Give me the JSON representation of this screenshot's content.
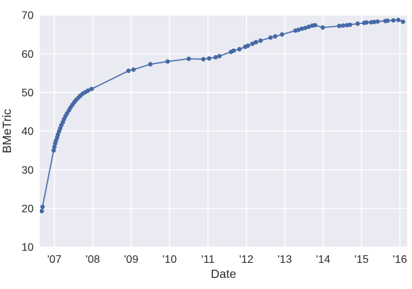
{
  "chart_data": {
    "type": "line",
    "title": "",
    "xlabel": "Date",
    "ylabel": "BMeTric",
    "xlim": [
      2006.62,
      2016.19
    ],
    "ylim": [
      10,
      70
    ],
    "grid": true,
    "legend_position": "none",
    "style": "seaborn-darkgrid",
    "x_ticks": [
      {
        "value": 2007,
        "label": "'07"
      },
      {
        "value": 2008,
        "label": "'08"
      },
      {
        "value": 2009,
        "label": "'09"
      },
      {
        "value": 2010,
        "label": "'10"
      },
      {
        "value": 2011,
        "label": "'11"
      },
      {
        "value": 2012,
        "label": "'12"
      },
      {
        "value": 2013,
        "label": "'13"
      },
      {
        "value": 2014,
        "label": "'14"
      },
      {
        "value": 2015,
        "label": "'15"
      },
      {
        "value": 2016,
        "label": "'16"
      }
    ],
    "y_ticks": [
      {
        "value": 10,
        "label": "10"
      },
      {
        "value": 20,
        "label": "20"
      },
      {
        "value": 30,
        "label": "30"
      },
      {
        "value": 40,
        "label": "40"
      },
      {
        "value": 50,
        "label": "50"
      },
      {
        "value": 60,
        "label": "60"
      },
      {
        "value": 70,
        "label": "70"
      }
    ],
    "colors": {
      "line": "#4c72b0",
      "marker": "#4668a5",
      "plot_background": "#eaeaf2",
      "gridline": "#ffffff",
      "text": "#2b2b2b",
      "figure_background": "#ffffff"
    },
    "series": [
      {
        "name": "BMeTric",
        "marker": "circle",
        "points": [
          [
            2006.67,
            19.3
          ],
          [
            2006.69,
            20.4
          ],
          [
            2006.98,
            35.0
          ],
          [
            2007.0,
            35.9
          ],
          [
            2007.02,
            36.8
          ],
          [
            2007.04,
            37.5
          ],
          [
            2007.07,
            38.3
          ],
          [
            2007.09,
            39.1
          ],
          [
            2007.12,
            39.9
          ],
          [
            2007.15,
            40.7
          ],
          [
            2007.18,
            41.5
          ],
          [
            2007.22,
            42.3
          ],
          [
            2007.25,
            43.1
          ],
          [
            2007.29,
            43.9
          ],
          [
            2007.33,
            44.6
          ],
          [
            2007.38,
            45.4
          ],
          [
            2007.42,
            46.1
          ],
          [
            2007.47,
            46.8
          ],
          [
            2007.52,
            47.5
          ],
          [
            2007.57,
            48.1
          ],
          [
            2007.63,
            48.7
          ],
          [
            2007.68,
            49.2
          ],
          [
            2007.74,
            49.7
          ],
          [
            2007.81,
            50.1
          ],
          [
            2007.88,
            50.5
          ],
          [
            2007.97,
            50.9
          ],
          [
            2008.93,
            55.6
          ],
          [
            2009.06,
            55.9
          ],
          [
            2009.5,
            57.3
          ],
          [
            2009.95,
            58.0
          ],
          [
            2010.5,
            58.7
          ],
          [
            2010.88,
            58.6
          ],
          [
            2011.03,
            58.8
          ],
          [
            2011.2,
            59.1
          ],
          [
            2011.3,
            59.4
          ],
          [
            2011.6,
            60.5
          ],
          [
            2011.67,
            60.8
          ],
          [
            2011.82,
            61.2
          ],
          [
            2011.97,
            61.8
          ],
          [
            2012.04,
            62.1
          ],
          [
            2012.16,
            62.6
          ],
          [
            2012.25,
            63.0
          ],
          [
            2012.37,
            63.4
          ],
          [
            2012.63,
            64.2
          ],
          [
            2012.75,
            64.5
          ],
          [
            2012.93,
            65.0
          ],
          [
            2013.28,
            66.0
          ],
          [
            2013.36,
            66.2
          ],
          [
            2013.45,
            66.5
          ],
          [
            2013.54,
            66.7
          ],
          [
            2013.63,
            67.0
          ],
          [
            2013.72,
            67.3
          ],
          [
            2013.79,
            67.4
          ],
          [
            2013.99,
            66.8
          ],
          [
            2014.42,
            67.2
          ],
          [
            2014.52,
            67.3
          ],
          [
            2014.62,
            67.4
          ],
          [
            2014.7,
            67.5
          ],
          [
            2014.9,
            67.8
          ],
          [
            2015.07,
            68.0
          ],
          [
            2015.13,
            68.1
          ],
          [
            2015.25,
            68.15
          ],
          [
            2015.33,
            68.25
          ],
          [
            2015.42,
            68.35
          ],
          [
            2015.62,
            68.5
          ],
          [
            2015.68,
            68.55
          ],
          [
            2015.83,
            68.65
          ],
          [
            2015.96,
            68.75
          ],
          [
            2016.08,
            68.3
          ]
        ]
      }
    ]
  }
}
